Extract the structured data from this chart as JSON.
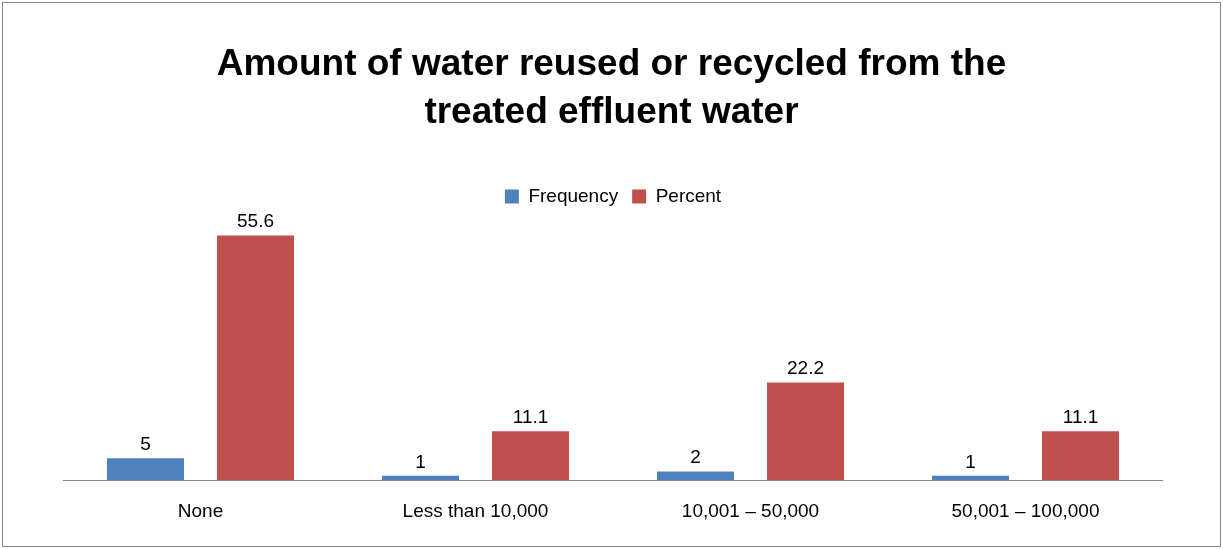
{
  "chart_data": {
    "type": "bar",
    "title": "Amount of water reused or recycled from the treated effluent water",
    "categories": [
      "None",
      "Less than 10,000",
      "10,001 – 50,000",
      "50,001 – 100,000"
    ],
    "series": [
      {
        "name": "Frequency",
        "color": "#4f81bd",
        "values": [
          5,
          1,
          2,
          1
        ]
      },
      {
        "name": "Percent",
        "color": "#c0504d",
        "values": [
          55.6,
          11.1,
          22.2,
          11.1
        ]
      }
    ],
    "data_labels": true,
    "legend": "top",
    "grid": false,
    "tick_labels": "x"
  }
}
